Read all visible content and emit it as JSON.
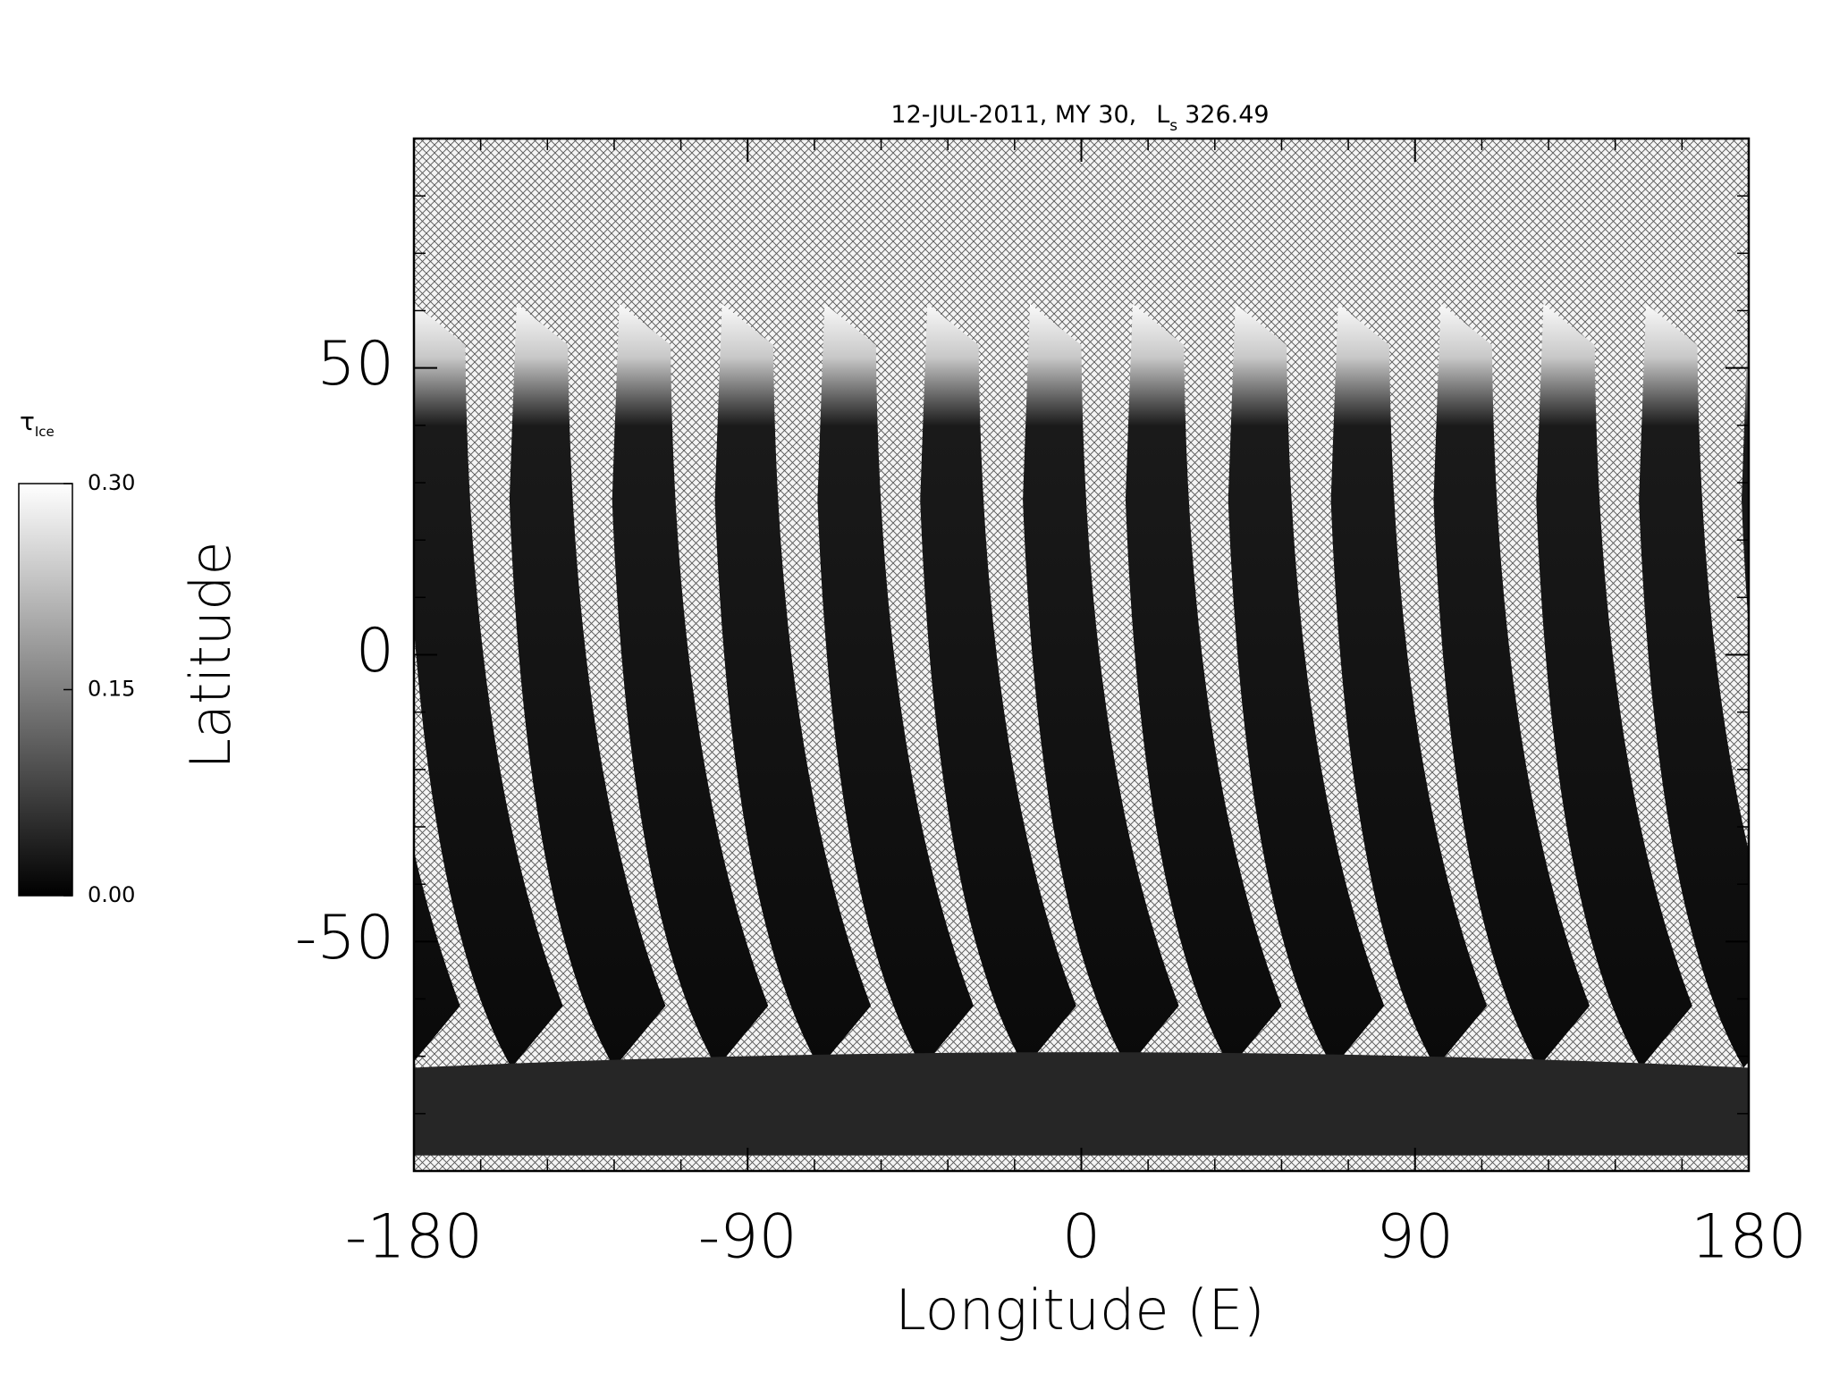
{
  "chart_data": {
    "type": "map",
    "title": {
      "date": "12-JUL-2011, MY 30,",
      "ls_symbol": "L",
      "ls_subscript": "s",
      "ls_value": "326.49"
    },
    "x_label": "Longitude (E)",
    "y_label": "Latitude",
    "xlim": [
      -180,
      180
    ],
    "xticks": [
      -180,
      -90,
      0,
      90,
      180
    ],
    "ylim": [
      -90,
      90
    ],
    "yticks": [
      -50,
      0,
      50
    ],
    "colorbar": {
      "label_symbol": "τ",
      "label_subscript": "Ice",
      "lim": [
        0,
        0.3
      ],
      "ticks": [
        {
          "value": 0,
          "label": "0.00"
        },
        {
          "value": 0.15,
          "label": "0.15"
        },
        {
          "value": 0.3,
          "label": "0.30"
        }
      ],
      "colors": [
        "#000000",
        "#ffffff"
      ]
    }
  }
}
